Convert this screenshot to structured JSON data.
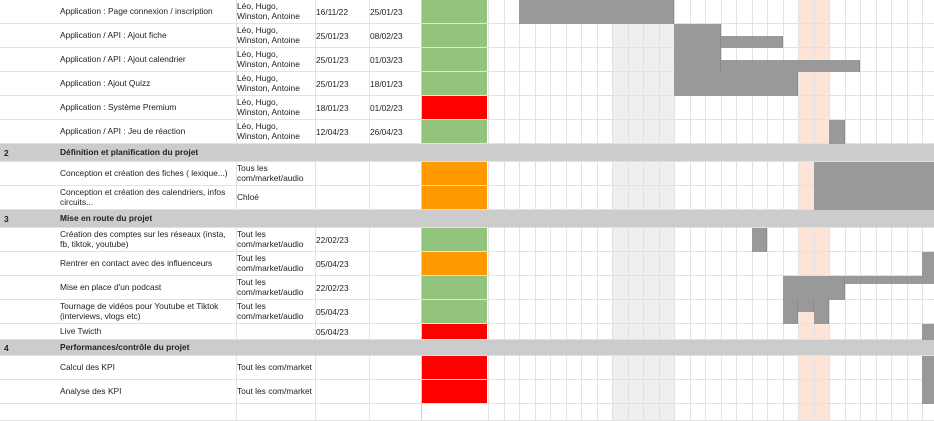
{
  "colors": {
    "green": "#93c47d",
    "orange": "#ff9900",
    "red": "#ff0000",
    "section_bg": "#cccccc",
    "weekend_shade": "#efefef",
    "highlight_shade": "#fce5d8",
    "bar": "#999999"
  },
  "rows": [
    {
      "type": "task",
      "task": "Application : Page connexion / inscription",
      "owner": "Léo, Hugo, Winston, Antoine",
      "start": "16/11/22",
      "end": "25/01/23",
      "status": "green"
    },
    {
      "type": "task",
      "task": "Application / API : Ajout fiche",
      "owner": "Léo, Hugo, Winston, Antoine",
      "start": "25/01/23",
      "end": "08/02/23",
      "status": "green"
    },
    {
      "type": "task",
      "task": "Application / API : Ajout calendrier",
      "owner": "Léo, Hugo, Winston, Antoine",
      "start": "25/01/23",
      "end": "01/03/23",
      "status": "green"
    },
    {
      "type": "task",
      "task": "Application : Ajout Quizz",
      "owner": "Léo, Hugo, Winston, Antoine",
      "start": "25/01/23",
      "end": "18/01/23",
      "status": "green"
    },
    {
      "type": "task",
      "task": "Application : Système Premium",
      "owner": "Léo, Hugo, Winston, Antoine",
      "start": "18/01/23",
      "end": "01/02/23",
      "status": "red"
    },
    {
      "type": "task",
      "task": "Application / API : Jeu de réaction",
      "owner": "Léo, Hugo, Winston, Antoine",
      "start": "12/04/23",
      "end": "26/04/23",
      "status": "green"
    },
    {
      "type": "section",
      "num": "2",
      "task": "Définition et planification du projet"
    },
    {
      "type": "task",
      "task": "Conception et création des fiches ( lexique...)",
      "owner": "Tous les com/market/audio",
      "start": "",
      "end": "",
      "status": "orange"
    },
    {
      "type": "task",
      "task": "Conception et création des calendriers, infos circuits...",
      "owner": "Chloé",
      "start": "",
      "end": "",
      "status": "orange"
    },
    {
      "type": "section",
      "num": "3",
      "task": "Mise en route du projet"
    },
    {
      "type": "task",
      "task": "Création des comptes sur les réseaux (insta, fb, tiktok, youtube)",
      "owner": "Tout les com/market/audio",
      "start": "22/02/23",
      "end": "",
      "status": "green"
    },
    {
      "type": "task",
      "task": "Rentrer en contact avec des influenceurs",
      "owner": "Tout les com/market/audio",
      "start": "05/04/23",
      "end": "",
      "status": "orange"
    },
    {
      "type": "task",
      "task": "Mise en place d'un podcast",
      "owner": "Tout les com/market/audio",
      "start": "22/02/23",
      "end": "",
      "status": "green"
    },
    {
      "type": "task",
      "task": "Tournage de vidéos pour Youtube et Tiktok (interviews, vlogs etc)",
      "owner": "Tout les com/market/audio",
      "start": "05/04/23",
      "end": "",
      "status": "green"
    },
    {
      "type": "task",
      "task": "Live Twicth",
      "owner": "",
      "start": "05/04/23",
      "end": "",
      "status": "red"
    },
    {
      "type": "section",
      "num": "4",
      "task": "Performances/contrôle du projet"
    },
    {
      "type": "task",
      "task": "Calcul des KPI",
      "owner": "Tout les com/market",
      "start": "",
      "end": "",
      "status": "red"
    },
    {
      "type": "task",
      "task": "Analyse des KPI",
      "owner": "Tout les com/market",
      "start": "",
      "end": "",
      "status": "red"
    },
    {
      "type": "task",
      "task": "",
      "owner": "",
      "start": "",
      "end": "",
      "status": "none"
    }
  ]
}
